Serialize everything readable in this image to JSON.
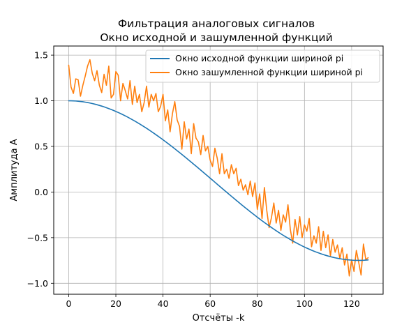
{
  "chart_data": {
    "type": "line",
    "title": [
      "Фильтрация аналоговых сигналов",
      "Окно исходной и зашумленной функций"
    ],
    "xlabel": "Отсчёты -k",
    "ylabel": "Амплитуда A",
    "xlim": [
      -6.35,
      133.35
    ],
    "ylim": [
      -1.12,
      1.6
    ],
    "x_ticks": [
      0,
      20,
      40,
      60,
      80,
      100,
      120
    ],
    "x_tick_labels": [
      "0",
      "20",
      "40",
      "60",
      "80",
      "100",
      "120"
    ],
    "y_ticks": [
      -1.0,
      -0.5,
      0.0,
      0.5,
      1.0,
      1.5
    ],
    "y_tick_labels": [
      "−1.0",
      "−0.5",
      "0.0",
      "0.5",
      "1.0",
      "1.5"
    ],
    "grid": true,
    "legend_position": "top-right",
    "series": [
      {
        "name": "Окно исходной функции шириной pi",
        "color": "#1f77b4",
        "x_start": 0,
        "x_step": 1,
        "values": [
          1.0,
          0.9997,
          0.9988,
          0.9973,
          0.9951,
          0.9924,
          0.989,
          0.9851,
          0.9806,
          0.9755,
          0.9698,
          0.9635,
          0.9567,
          0.9493,
          0.9415,
          0.933,
          0.9241,
          0.9146,
          0.9046,
          0.8941,
          0.8831,
          0.8716,
          0.8597,
          0.8472,
          0.8343,
          0.8209,
          0.8071,
          0.7928,
          0.7781,
          0.763,
          0.7475,
          0.7316,
          0.7153,
          0.6986,
          0.6816,
          0.6642,
          0.6464,
          0.6284,
          0.61,
          0.5913,
          0.5723,
          0.5531,
          0.5336,
          0.5138,
          0.4938,
          0.4736,
          0.4532,
          0.4325,
          0.4117,
          0.3907,
          0.3696,
          0.3483,
          0.3268,
          0.3052,
          0.2836,
          0.2618,
          0.2399,
          0.218,
          0.196,
          0.1739,
          0.1519,
          0.1298,
          0.1077,
          0.0856,
          0.0635,
          0.0415,
          0.0195,
          -0.0024,
          -0.0243,
          -0.0461,
          -0.0678,
          -0.0894,
          -0.1108,
          -0.1321,
          -0.1532,
          -0.1742,
          -0.1949,
          -0.2155,
          -0.2358,
          -0.2559,
          -0.2758,
          -0.2954,
          -0.3147,
          -0.3337,
          -0.3524,
          -0.3709,
          -0.389,
          -0.4068,
          -0.4242,
          -0.4413,
          -0.458,
          -0.4743,
          -0.4902,
          -0.5058,
          -0.5209,
          -0.5356,
          -0.5499,
          -0.5638,
          -0.5772,
          -0.5902,
          -0.6027,
          -0.6148,
          -0.6263,
          -0.6374,
          -0.648,
          -0.6582,
          -0.6678,
          -0.6769,
          -0.6855,
          -0.6936,
          -0.7011,
          -0.7082,
          -0.7146,
          -0.7206,
          -0.726,
          -0.7308,
          -0.7351,
          -0.7388,
          -0.742,
          -0.7445,
          -0.7465,
          -0.748,
          -0.7488,
          -0.7491,
          -0.7488,
          -0.7479,
          -0.7464,
          -0.7444
        ]
      },
      {
        "name": "Окно зашумленной функции шириной pi",
        "color": "#ff7f0e",
        "x_start": 0,
        "x_step": 1,
        "values": [
          1.39,
          1.15,
          1.08,
          1.24,
          1.23,
          1.05,
          1.17,
          1.27,
          1.38,
          1.45,
          1.3,
          1.22,
          1.33,
          1.17,
          1.09,
          1.29,
          1.17,
          1.38,
          1.03,
          1.07,
          1.32,
          1.28,
          1.0,
          1.19,
          1.11,
          1.02,
          1.22,
          0.96,
          1.16,
          0.98,
          1.07,
          0.88,
          0.98,
          1.16,
          0.93,
          1.07,
          1.0,
          1.08,
          0.88,
          0.94,
          1.07,
          0.78,
          0.9,
          0.66,
          0.86,
          0.99,
          0.79,
          0.72,
          0.47,
          0.77,
          0.58,
          0.69,
          0.42,
          0.75,
          0.59,
          0.55,
          0.41,
          0.62,
          0.45,
          0.5,
          0.35,
          0.28,
          0.48,
          0.37,
          0.2,
          0.42,
          0.2,
          0.25,
          0.15,
          0.3,
          0.2,
          0.26,
          0.07,
          0.14,
          0.02,
          0.08,
          -0.03,
          0.12,
          -0.05,
          0.1,
          -0.19,
          -0.02,
          -0.29,
          0.05,
          -0.2,
          -0.39,
          -0.28,
          -0.12,
          -0.34,
          -0.2,
          -0.42,
          -0.25,
          -0.33,
          -0.14,
          -0.41,
          -0.56,
          -0.3,
          -0.47,
          -0.27,
          -0.5,
          -0.36,
          -0.43,
          -0.29,
          -0.6,
          -0.48,
          -0.56,
          -0.38,
          -0.64,
          -0.43,
          -0.61,
          -0.47,
          -0.7,
          -0.52,
          -0.66,
          -0.58,
          -0.73,
          -0.61,
          -0.8,
          -0.68,
          -0.92,
          -0.74,
          -0.87,
          -0.64,
          -0.77,
          -0.91,
          -0.57,
          -0.74,
          -0.72
        ]
      }
    ]
  }
}
